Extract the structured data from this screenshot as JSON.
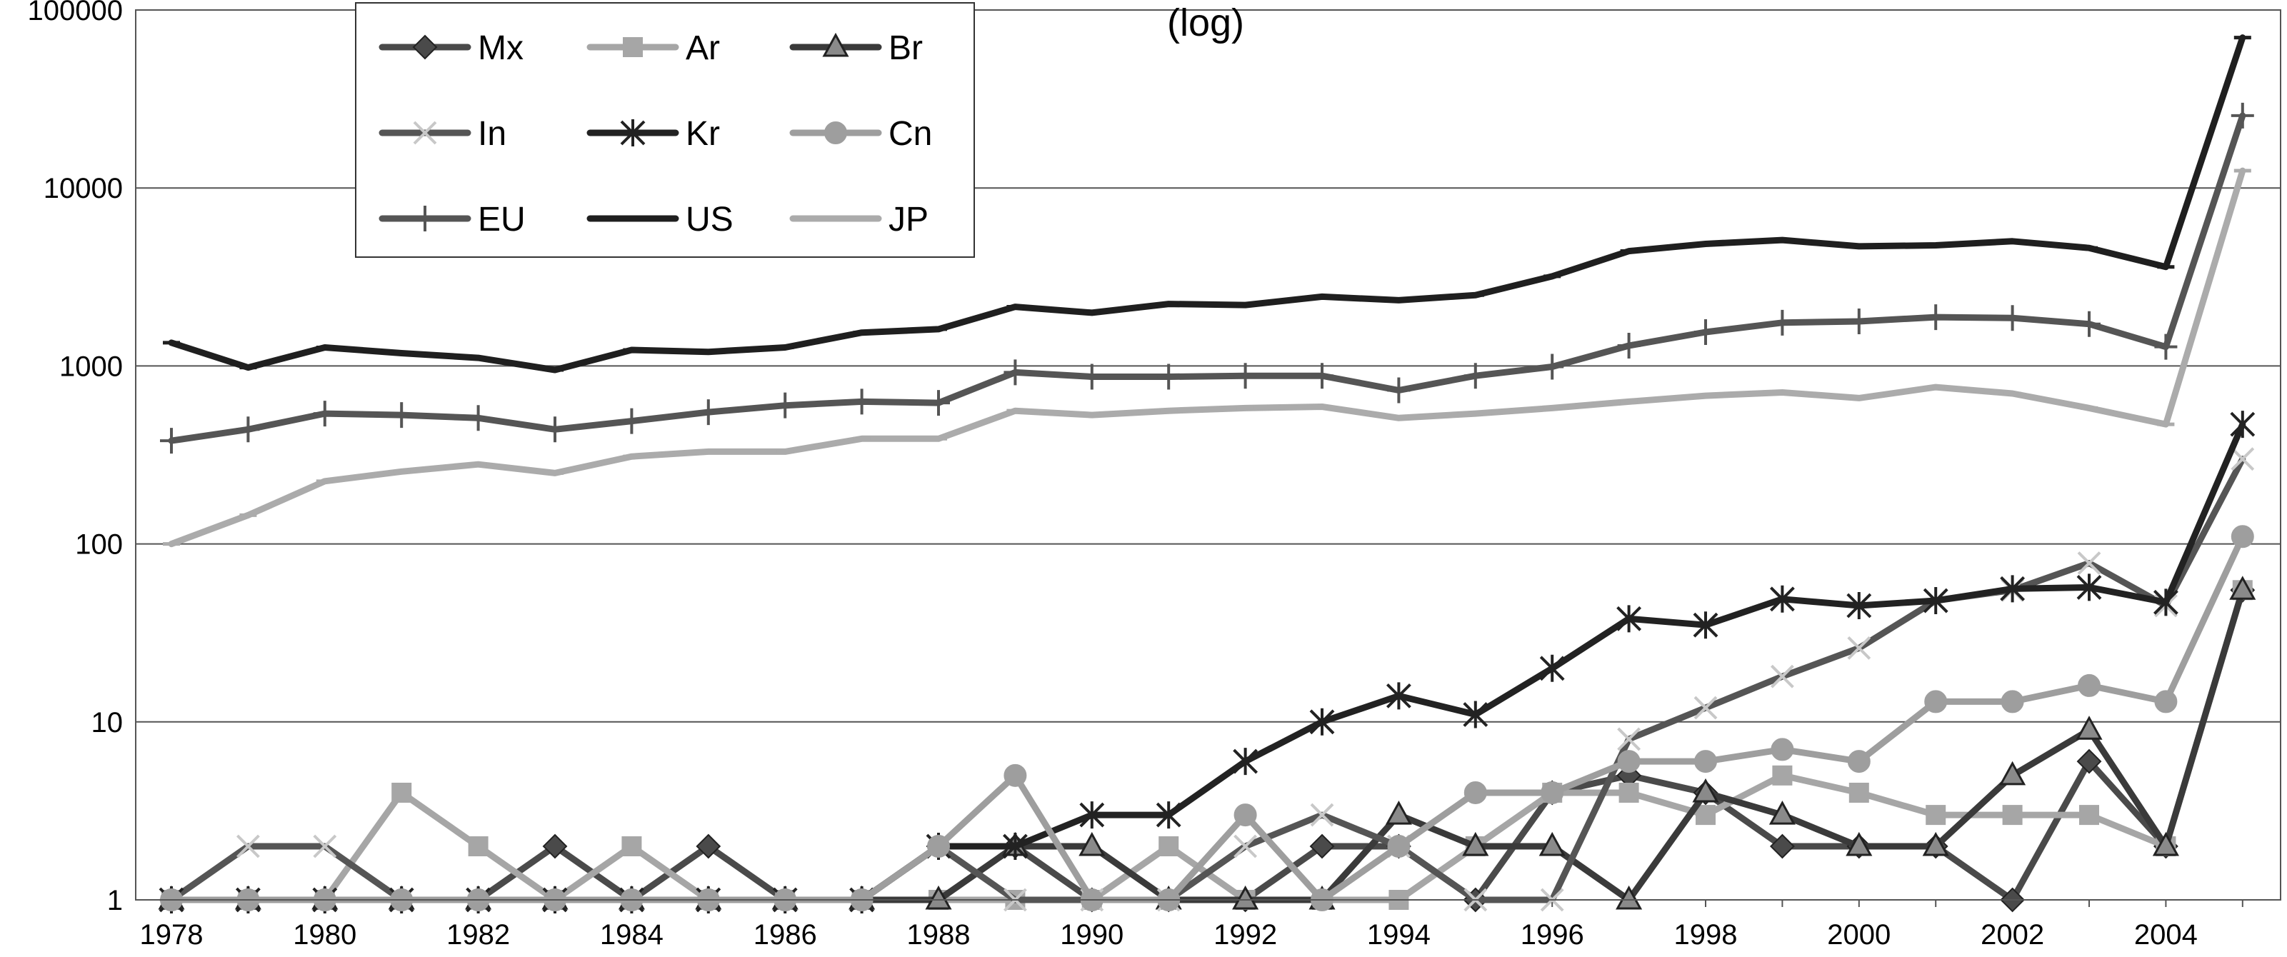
{
  "chart_data": {
    "type": "line",
    "title": "(log)",
    "xlabel": "",
    "ylabel": "",
    "y_scale": "log",
    "ylim": [
      1,
      100000
    ],
    "xlim": [
      1978,
      2005
    ],
    "grid": "horizontal",
    "legend_position": "top-left",
    "y_ticks": [
      {
        "value": 1,
        "label": "1"
      },
      {
        "value": 10,
        "label": "10"
      },
      {
        "value": 100,
        "label": "100"
      },
      {
        "value": 1000,
        "label": "1000"
      },
      {
        "value": 10000,
        "label": "10000"
      },
      {
        "value": 100000,
        "label": "100000"
      }
    ],
    "x_ticks": [
      {
        "value": 1978,
        "label": "1978"
      },
      {
        "value": 1980,
        "label": "1980"
      },
      {
        "value": 1982,
        "label": "1982"
      },
      {
        "value": 1984,
        "label": "1984"
      },
      {
        "value": 1986,
        "label": "1986"
      },
      {
        "value": 1988,
        "label": "1988"
      },
      {
        "value": 1990,
        "label": "1990"
      },
      {
        "value": 1992,
        "label": "1992"
      },
      {
        "value": 1994,
        "label": "1994"
      },
      {
        "value": 1996,
        "label": "1996"
      },
      {
        "value": 1998,
        "label": "1998"
      },
      {
        "value": 2000,
        "label": "2000"
      },
      {
        "value": 2002,
        "label": "2002"
      },
      {
        "value": 2004,
        "label": "2004"
      }
    ],
    "x": [
      1978,
      1979,
      1980,
      1981,
      1982,
      1983,
      1984,
      1985,
      1986,
      1987,
      1988,
      1989,
      1990,
      1991,
      1992,
      1993,
      1994,
      1995,
      1996,
      1997,
      1998,
      1999,
      2000,
      2001,
      2002,
      2003,
      2004,
      2005
    ],
    "series": [
      {
        "name": "Mx",
        "color": "#4a4a4a",
        "marker": "diamond",
        "values": [
          1,
          1,
          1,
          1,
          1,
          2,
          1,
          2,
          1,
          1,
          2,
          2,
          1,
          1,
          1,
          2,
          2,
          1,
          4,
          5,
          4,
          2,
          2,
          2,
          1,
          6,
          2,
          55
        ]
      },
      {
        "name": "Ar",
        "color": "#a6a6a6",
        "marker": "square",
        "values": [
          1,
          1,
          1,
          4,
          2,
          1,
          2,
          1,
          1,
          1,
          1,
          1,
          1,
          2,
          1,
          1,
          1,
          2,
          4,
          4,
          3,
          5,
          4,
          3,
          3,
          3,
          2,
          55
        ]
      },
      {
        "name": "Br",
        "color": "#3a3a3a",
        "marker": "triangle",
        "values": [
          1,
          1,
          1,
          1,
          1,
          1,
          1,
          1,
          1,
          1,
          1,
          2,
          2,
          1,
          1,
          1,
          3,
          2,
          2,
          1,
          4,
          3,
          2,
          2,
          5,
          9,
          2,
          55
        ]
      },
      {
        "name": "In",
        "color": "#555555",
        "marker": "x",
        "values": [
          1,
          2,
          2,
          1,
          1,
          1,
          1,
          1,
          1,
          1,
          2,
          1,
          1,
          1,
          2,
          3,
          2,
          1,
          1,
          8,
          12,
          18,
          26,
          48,
          55,
          78,
          45,
          300
        ]
      },
      {
        "name": "Kr",
        "color": "#222222",
        "marker": "star",
        "values": [
          1,
          1,
          1,
          1,
          1,
          1,
          1,
          1,
          1,
          1,
          2,
          2,
          3,
          3,
          6,
          10,
          14,
          11,
          20,
          38,
          35,
          49,
          45,
          48,
          56,
          57,
          47,
          470
        ]
      },
      {
        "name": "Cn",
        "color": "#9e9e9e",
        "marker": "circle",
        "values": [
          1,
          1,
          1,
          1,
          1,
          1,
          1,
          1,
          1,
          1,
          2,
          5,
          1,
          1,
          3,
          1,
          2,
          4,
          4,
          6,
          6,
          7,
          6,
          13,
          13,
          16,
          13,
          110
        ]
      },
      {
        "name": "EU",
        "color": "#555555",
        "marker": "plus",
        "values": [
          380,
          440,
          540,
          530,
          510,
          440,
          490,
          550,
          600,
          630,
          620,
          920,
          870,
          870,
          880,
          880,
          730,
          880,
          990,
          1300,
          1550,
          1750,
          1780,
          1880,
          1860,
          1720,
          1280,
          25500
        ]
      },
      {
        "name": "US",
        "color": "#1f1f1f",
        "marker": "dash",
        "values": [
          1350,
          980,
          1270,
          1180,
          1110,
          950,
          1230,
          1200,
          1270,
          1540,
          1610,
          2150,
          1990,
          2230,
          2200,
          2450,
          2340,
          2500,
          3190,
          4420,
          4850,
          5100,
          4700,
          4760,
          5020,
          4600,
          3600,
          70000
        ]
      },
      {
        "name": "JP",
        "color": "#ababab",
        "marker": "dash",
        "values": [
          100,
          145,
          225,
          255,
          280,
          250,
          310,
          330,
          330,
          390,
          390,
          560,
          530,
          560,
          580,
          590,
          510,
          540,
          580,
          630,
          680,
          710,
          660,
          760,
          700,
          580,
          470,
          12500
        ]
      }
    ]
  }
}
